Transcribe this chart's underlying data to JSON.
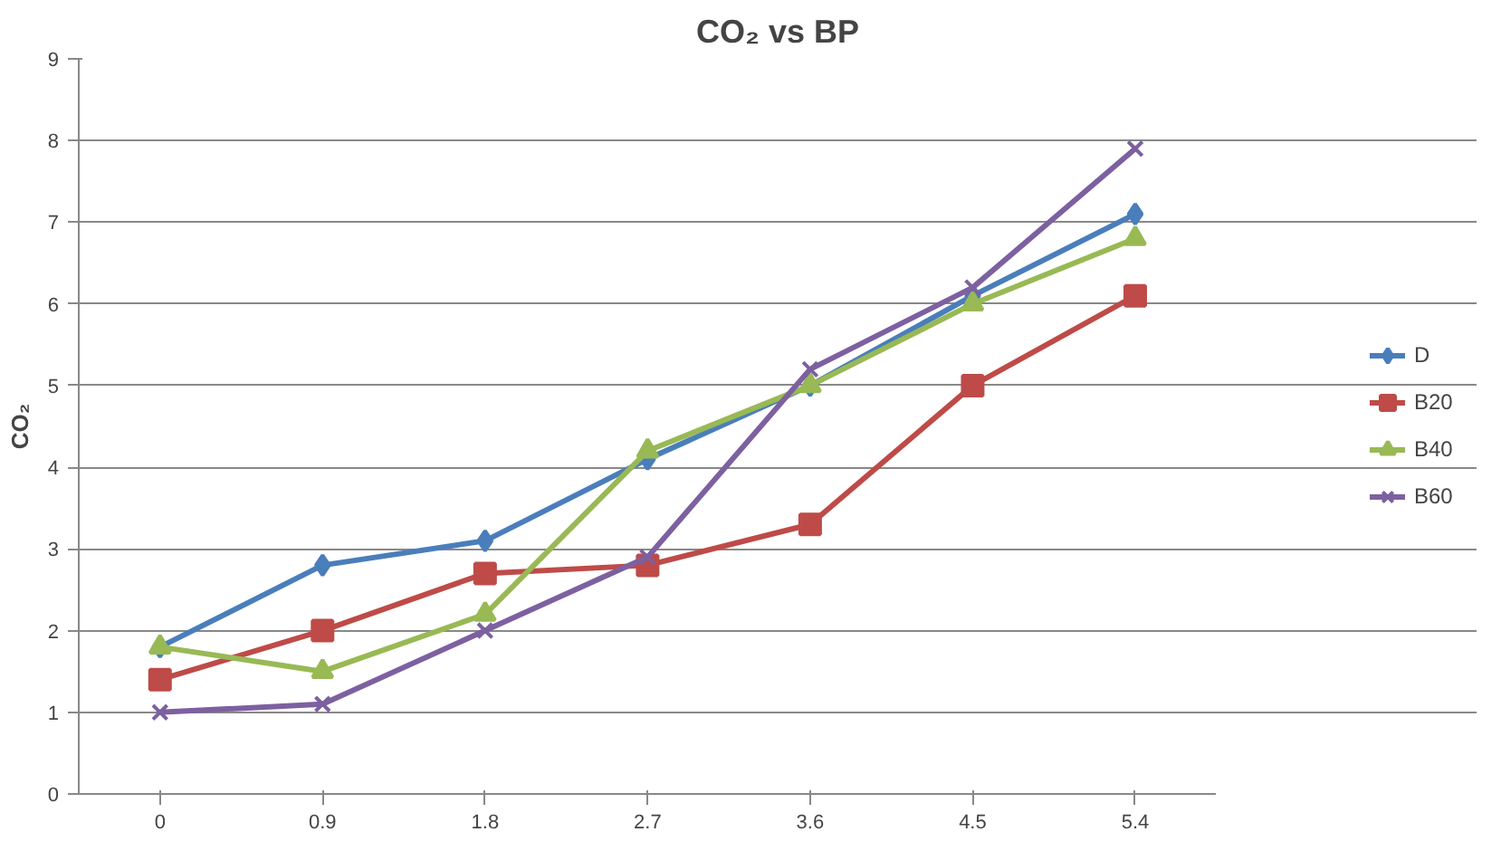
{
  "chart_data": {
    "type": "line",
    "title": "CO₂ vs BP",
    "ylabel": "CO₂",
    "categories": [
      "0",
      "0.9",
      "1.8",
      "2.7",
      "3.6",
      "4.5",
      "5.4"
    ],
    "series": [
      {
        "name": "D",
        "color": "#4a7ebb",
        "marker": "diamond",
        "values": [
          1.8,
          2.8,
          3.1,
          4.1,
          5.0,
          6.1,
          7.1
        ]
      },
      {
        "name": "B20",
        "color": "#be4b48",
        "marker": "square",
        "values": [
          1.4,
          2.0,
          2.7,
          2.8,
          3.3,
          5.0,
          6.1
        ]
      },
      {
        "name": "B40",
        "color": "#98b954",
        "marker": "triangle",
        "values": [
          1.8,
          1.5,
          2.2,
          4.2,
          5.0,
          6.0,
          6.8
        ]
      },
      {
        "name": "B60",
        "color": "#7d60a0",
        "marker": "cross",
        "values": [
          1.0,
          1.1,
          2.0,
          2.9,
          5.2,
          6.2,
          7.9
        ]
      }
    ],
    "ylim": [
      0,
      9
    ],
    "yticks": [
      0,
      1,
      2,
      3,
      4,
      5,
      6,
      7,
      8,
      9
    ],
    "grid": "y",
    "legend": "right",
    "line_style": "solid"
  }
}
